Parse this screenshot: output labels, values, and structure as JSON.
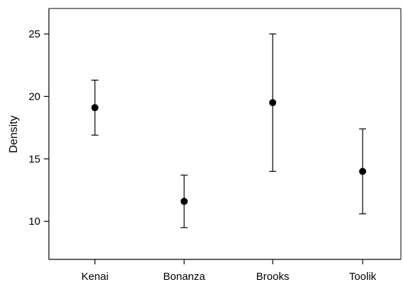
{
  "chart_data": {
    "type": "scatter",
    "title": "",
    "xlabel": "",
    "ylabel": "Density",
    "categories": [
      "Kenai",
      "Bonanza",
      "Brooks",
      "Toolik"
    ],
    "series": [
      {
        "values": [
          19.1,
          11.6,
          19.5,
          14.0
        ],
        "error_low": [
          16.9,
          9.5,
          14.0,
          10.6
        ],
        "error_high": [
          21.3,
          13.7,
          25.0,
          17.4
        ]
      }
    ],
    "ylim": [
      7,
      27
    ],
    "yticks": [
      10,
      15,
      20,
      25
    ],
    "grid": false,
    "legend": "none",
    "colors": {
      "marker": "#000000",
      "axis": "#000000",
      "background": "#ffffff"
    }
  }
}
